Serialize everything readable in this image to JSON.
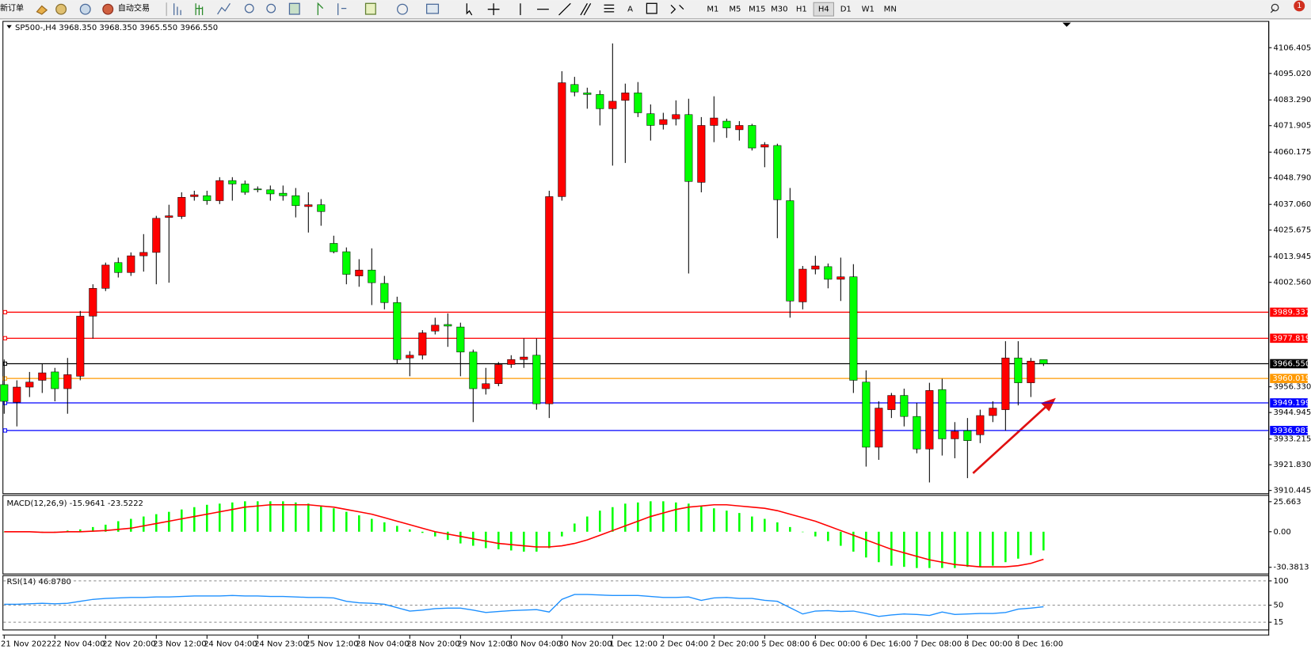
{
  "toolbar": {
    "new_order": "新订单",
    "auto_trading": "自动交易",
    "timeframes": [
      "M1",
      "M5",
      "M15",
      "M30",
      "H1",
      "H4",
      "D1",
      "W1",
      "MN"
    ],
    "badge": "1"
  },
  "chart_data": [
    {
      "type": "candlestick",
      "title": "SP500-,H4 3968.350 3968.350 3965.550 3966.550",
      "categories": [
        "21 Nov 2022",
        null,
        null,
        null,
        "22 Nov 04:00",
        null,
        null,
        null,
        "22 Nov 20:00",
        null,
        null,
        null,
        "23 Nov 12:00",
        null,
        null,
        null,
        "24 Nov 04:00",
        null,
        null,
        null,
        "24 Nov 23:00",
        null,
        null,
        null,
        "25 Nov 12:00",
        null,
        null,
        null,
        "28 Nov 04:00",
        null,
        null,
        null,
        "28 Nov 20:00",
        null,
        null,
        null,
        "29 Nov 12:00",
        null,
        null,
        null,
        "30 Nov 04:00",
        null,
        null,
        null,
        "30 Nov 20:00",
        null,
        null,
        null,
        "1 Dec 12:00",
        null,
        null,
        null,
        "2 Dec 04:00",
        null,
        null,
        null,
        "2 Dec 20:00",
        null,
        null,
        null,
        "5 Dec 08:00",
        null,
        null,
        null,
        "6 Dec 00:00",
        null,
        null,
        null,
        "6 Dec 16:00",
        null,
        null,
        null,
        "7 Dec 08:00",
        null,
        null,
        null,
        "8 Dec 00:00",
        null,
        null,
        null,
        "8 Dec 16:00",
        null,
        null
      ],
      "open": [
        3957.3,
        3949.5,
        3956.2,
        3959.2,
        3962.9,
        3955.5,
        3961.0,
        3987.6,
        3999.9,
        4011.3,
        4006.9,
        4014.3,
        4015.8,
        4031.3,
        4031.7,
        4040.5,
        4040.9,
        4038.7,
        4047.6,
        4046.1,
        4043.9,
        4043.5,
        4042.0,
        4040.9,
        4036.1,
        4036.9,
        4019.8,
        4016.1,
        4005.4,
        4008.0,
        4002.1,
        3993.6,
        3969.1,
        3970.3,
        3981.0,
        3983.9,
        3982.8,
        3971.7,
        3955.5,
        3957.7,
        3966.2,
        3968.4,
        3970.3,
        3948.8,
        4040.5,
        4090.1,
        4086.4,
        4085.7,
        4079.4,
        4083.1,
        4086.4,
        4077.2,
        4072.4,
        4074.9,
        4076.8,
        4046.8,
        4072.0,
        4073.9,
        4070.1,
        4072.0,
        4062.4,
        4063.1,
        4038.7,
        3993.9,
        4008.4,
        4009.5,
        4003.9,
        4005.0,
        3958.4,
        3929.6,
        3946.2,
        3952.5,
        3943.2,
        3928.8,
        3955.1,
        3933.3,
        3936.9,
        3935.1,
        3943.6,
        3946.2,
        3969.1,
        3958.1,
        3968.35
      ],
      "high": [
        3968.4,
        3959.2,
        3962.9,
        3966.5,
        3964.7,
        3969.1,
        3989.9,
        4001.7,
        4011.3,
        4013.5,
        4015.8,
        4023.9,
        4032.0,
        4036.9,
        4042.4,
        4043.1,
        4043.1,
        4049.1,
        4049.1,
        4047.6,
        4045.0,
        4045.4,
        4045.4,
        4044.3,
        4042.4,
        4039.4,
        4023.2,
        4018.0,
        4012.8,
        4017.6,
        4005.4,
        3996.2,
        3972.1,
        3981.4,
        3986.9,
        3988.8,
        3984.7,
        3972.8,
        3964.7,
        3967.3,
        3970.3,
        3977.7,
        3977.7,
        4043.1,
        4096.0,
        4093.5,
        4088.7,
        4087.5,
        4108.3,
        4090.5,
        4091.2,
        4081.3,
        4077.6,
        4083.1,
        4083.8,
        4075.7,
        4084.9,
        4075.0,
        4073.9,
        4072.7,
        4064.6,
        4063.9,
        4044.3,
        4009.8,
        4014.3,
        4010.9,
        4013.5,
        4010.6,
        3963.6,
        3949.9,
        3953.6,
        3955.5,
        3949.2,
        3958.1,
        3959.9,
        3940.7,
        3942.5,
        3946.2,
        3949.9,
        3976.5,
        3976.5,
        3969.1,
        3968.35
      ],
      "low": [
        3944.4,
        3938.8,
        3951.8,
        3953.6,
        3949.9,
        3944.4,
        3959.2,
        3977.7,
        3998.7,
        4004.7,
        4005.4,
        4007.3,
        4001.7,
        4002.4,
        4030.6,
        4038.7,
        4036.9,
        4037.2,
        4038.7,
        4041.3,
        4042.4,
        4038.7,
        4038.7,
        4031.3,
        4024.6,
        4027.6,
        4015.4,
        4001.7,
        4000.6,
        3992.5,
        3990.6,
        3966.5,
        3961.0,
        3968.4,
        3979.5,
        3974.0,
        3961.0,
        3940.7,
        3952.9,
        3956.6,
        3964.7,
        3964.7,
        3946.2,
        3942.5,
        4038.7,
        4084.9,
        4079.4,
        4072.0,
        4054.2,
        4055.4,
        4075.7,
        4065.3,
        4070.2,
        4072.0,
        4006.5,
        4042.4,
        4064.6,
        4066.5,
        4065.3,
        4060.9,
        4053.5,
        4022.1,
        3986.9,
        3990.6,
        4006.1,
        3999.9,
        3994.3,
        3953.6,
        3921.0,
        3924.0,
        3942.5,
        3938.8,
        3926.9,
        3914.0,
        3925.9,
        3924.7,
        3915.9,
        3931.4,
        3940.7,
        3936.9,
        3948.1,
        3951.8,
        3965.55
      ],
      "close": [
        3949.9,
        3956.2,
        3958.4,
        3962.5,
        3955.5,
        3961.7,
        3987.6,
        3999.9,
        4010.2,
        4006.9,
        4014.3,
        4015.8,
        4030.9,
        4032.0,
        4040.2,
        4041.3,
        4038.7,
        4047.6,
        4046.1,
        4042.4,
        4043.5,
        4041.7,
        4040.9,
        4036.5,
        4036.9,
        4033.9,
        4016.1,
        4006.1,
        4008.0,
        4002.4,
        3993.6,
        3968.4,
        3970.3,
        3980.2,
        3983.6,
        3983.2,
        3971.7,
        3955.5,
        3957.7,
        3966.2,
        3968.4,
        3969.5,
        3948.8,
        4040.5,
        4090.9,
        4086.8,
        4085.7,
        4079.4,
        4082.7,
        4086.4,
        4077.6,
        4072.0,
        4074.6,
        4076.8,
        4047.2,
        4072.0,
        4075.3,
        4070.9,
        4072.0,
        4062.0,
        4063.5,
        4039.1,
        3994.3,
        4008.4,
        4009.8,
        4003.9,
        4005.0,
        3959.2,
        3929.6,
        3946.9,
        3952.5,
        3943.2,
        3928.8,
        3954.7,
        3933.3,
        3936.6,
        3932.5,
        3943.6,
        3946.9,
        3969.1,
        3958.1,
        3967.7,
        3966.55
      ],
      "up_color": "#ff0000",
      "down_color": "#00ff00",
      "ylim": [
        3909.2,
        4117.5
      ],
      "yticks": [
        {
          "value": 4106.405,
          "label": "4106.405"
        },
        {
          "value": 4095.02,
          "label": "4095.020"
        },
        {
          "value": 4083.29,
          "label": "4083.290"
        },
        {
          "value": 4071.905,
          "label": "4071.905"
        },
        {
          "value": 4060.175,
          "label": "4060.175"
        },
        {
          "value": 4048.79,
          "label": "4048.790"
        },
        {
          "value": 4037.06,
          "label": "4037.060"
        },
        {
          "value": 4025.675,
          "label": "4025.675"
        },
        {
          "value": 4013.945,
          "label": "4013.945"
        },
        {
          "value": 4002.56,
          "label": "4002.560"
        },
        {
          "value": 3956.33,
          "label": "3956.330"
        },
        {
          "value": 3944.945,
          "label": "3944.945"
        },
        {
          "value": 3933.215,
          "label": "3933.215"
        },
        {
          "value": 3921.83,
          "label": "3921.830"
        },
        {
          "value": 3910.445,
          "label": "3910.445"
        }
      ],
      "hlines": [
        {
          "value": 3989.337,
          "label": "3989.337",
          "color": "#ff0000"
        },
        {
          "value": 3977.819,
          "label": "3977.819",
          "color": "#ff0000"
        },
        {
          "value": 3966.55,
          "label": "3966.550",
          "color": "#000000"
        },
        {
          "value": 3960.019,
          "label": "3960.019",
          "color": "#ff9900"
        },
        {
          "value": 3949.199,
          "label": "3949.199",
          "color": "#0000ff"
        },
        {
          "value": 3936.983,
          "label": "3936.983",
          "color": "#0000ff"
        }
      ]
    },
    {
      "type": "macd",
      "title": "MACD(12,26,9) -15.9641 -23.5222",
      "series": [
        {
          "color": "#00ff00",
          "values": [
            0,
            0,
            0,
            0,
            0,
            1,
            2,
            4,
            6,
            9,
            11,
            13,
            15,
            17,
            19,
            21,
            23,
            24,
            25,
            26,
            26,
            26,
            26,
            25,
            24,
            22,
            20,
            17,
            14,
            11,
            8,
            5,
            2,
            -1,
            -4,
            -7,
            -10,
            -12,
            -14,
            -15,
            -16,
            -17,
            -17,
            -14,
            -4,
            7,
            13,
            18,
            21,
            24,
            25,
            26,
            26,
            25,
            24,
            22,
            20,
            18,
            16,
            13,
            11,
            8,
            4,
            0,
            -4,
            -8,
            -12,
            -17,
            -22,
            -26,
            -29,
            -30,
            -31,
            -31,
            -31,
            -31,
            -30,
            -30,
            -29,
            -26,
            -23,
            -20,
            -15.9641
          ]
        },
        {
          "color": "#ff0000",
          "values": [
            0,
            0,
            0,
            -0.5,
            -0.5,
            0,
            0,
            0.5,
            1,
            2,
            3,
            5,
            7,
            9,
            11,
            13,
            15,
            17,
            19,
            21,
            22,
            23,
            23,
            23,
            23,
            22,
            21,
            19,
            17,
            15,
            12,
            9,
            6,
            3,
            0,
            -2,
            -4,
            -6,
            -8,
            -10,
            -11,
            -12,
            -13,
            -13,
            -12,
            -10,
            -7,
            -3,
            1,
            5,
            9,
            13,
            16,
            19,
            21,
            22,
            23,
            23,
            22,
            21,
            20,
            18,
            15,
            12,
            9,
            5,
            1,
            -3,
            -7,
            -11,
            -15,
            -18,
            -21,
            -24,
            -26,
            -28,
            -29,
            -30,
            -30,
            -30,
            -29,
            -27,
            -23.5222
          ]
        }
      ],
      "ylim": [
        -35.7,
        30.7
      ],
      "yticks": [
        25.663,
        {
          "value": 0,
          "label": "0.00"
        },
        -30.3813
      ]
    },
    {
      "type": "line",
      "title": "RSI(14) 46.8780",
      "color": "#1e90ff",
      "values": [
        52,
        52,
        53,
        54,
        53,
        54,
        58,
        62,
        64,
        65,
        66,
        66,
        67,
        67,
        68,
        69,
        69,
        69,
        70,
        69,
        69,
        68,
        68,
        67,
        66,
        66,
        65,
        58,
        55,
        54,
        52,
        45,
        38,
        40,
        43,
        44,
        44,
        40,
        35,
        37,
        39,
        40,
        41,
        36,
        62,
        72,
        72,
        71,
        70,
        70,
        70,
        68,
        66,
        66,
        67,
        60,
        65,
        66,
        64,
        64,
        60,
        58,
        45,
        32,
        38,
        39,
        37,
        38,
        33,
        27,
        30,
        32,
        31,
        29,
        36,
        31,
        32,
        33,
        33,
        35,
        42,
        44,
        46.878
      ],
      "ylim": [
        0,
        110
      ],
      "yticks": [
        100,
        50,
        15
      ]
    }
  ]
}
